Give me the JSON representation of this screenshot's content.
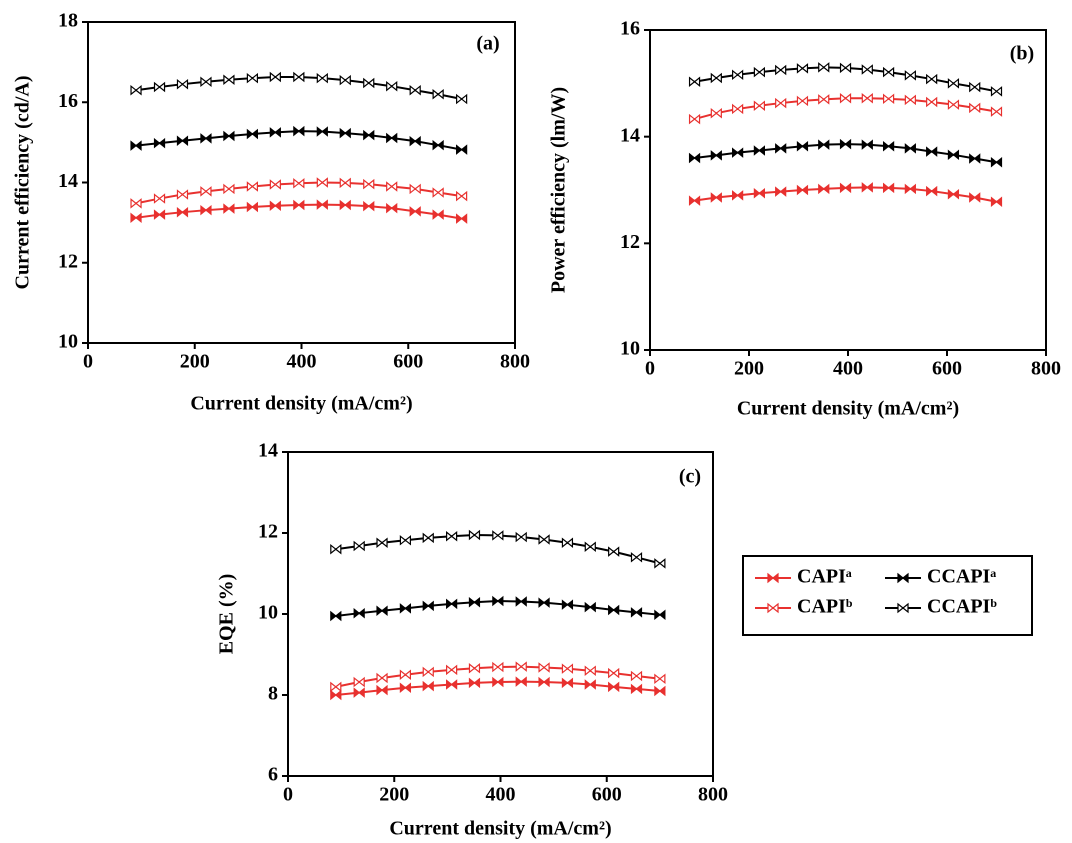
{
  "chart_data": [
    {
      "type": "line",
      "annotation": "(a)",
      "x_label": "Current density (mA/cm²)",
      "y_label": "Current efficiency (cd/A)",
      "x": [
        90,
        134,
        177,
        221,
        264,
        308,
        351,
        395,
        439,
        482,
        526,
        569,
        613,
        656,
        700
      ],
      "xlim": [
        0,
        800
      ],
      "xticks": [
        0,
        200,
        400,
        600,
        800
      ],
      "ylim": [
        10,
        18
      ],
      "yticks": [
        10,
        12,
        14,
        16,
        18
      ],
      "series": [
        {
          "color": "#e8312f",
          "filled": true,
          "values": [
            13.12,
            13.2,
            13.26,
            13.31,
            13.35,
            13.39,
            13.42,
            13.44,
            13.45,
            13.44,
            13.41,
            13.36,
            13.28,
            13.2,
            13.1
          ]
        },
        {
          "color": "#e8312f",
          "filled": false,
          "values": [
            13.48,
            13.6,
            13.7,
            13.78,
            13.84,
            13.9,
            13.95,
            13.98,
            14.0,
            13.99,
            13.96,
            13.9,
            13.84,
            13.75,
            13.66
          ]
        },
        {
          "color": "#000000",
          "filled": true,
          "values": [
            14.92,
            14.98,
            15.04,
            15.1,
            15.16,
            15.21,
            15.25,
            15.28,
            15.27,
            15.23,
            15.18,
            15.11,
            15.03,
            14.93,
            14.82
          ]
        },
        {
          "color": "#000000",
          "filled": false,
          "values": [
            16.3,
            16.38,
            16.45,
            16.51,
            16.56,
            16.6,
            16.63,
            16.63,
            16.6,
            16.55,
            16.48,
            16.4,
            16.3,
            16.2,
            16.08
          ]
        }
      ]
    },
    {
      "type": "line",
      "annotation": "(b)",
      "x_label": "Current density (mA/cm²)",
      "y_label": "Power efficiency (lm/W)",
      "x": [
        90,
        134,
        177,
        221,
        264,
        308,
        351,
        395,
        439,
        482,
        526,
        569,
        613,
        656,
        700
      ],
      "xlim": [
        0,
        800
      ],
      "xticks": [
        0,
        200,
        400,
        600,
        800
      ],
      "ylim": [
        10,
        16
      ],
      "yticks": [
        10,
        12,
        14,
        16
      ],
      "series": [
        {
          "color": "#e8312f",
          "filled": true,
          "values": [
            12.8,
            12.86,
            12.9,
            12.94,
            12.97,
            13.0,
            13.02,
            13.04,
            13.05,
            13.04,
            13.02,
            12.98,
            12.92,
            12.86,
            12.78
          ]
        },
        {
          "color": "#e8312f",
          "filled": false,
          "values": [
            14.33,
            14.44,
            14.52,
            14.58,
            14.63,
            14.67,
            14.7,
            14.72,
            14.72,
            14.71,
            14.69,
            14.65,
            14.6,
            14.54,
            14.47
          ]
        },
        {
          "color": "#000000",
          "filled": true,
          "values": [
            13.6,
            13.65,
            13.7,
            13.74,
            13.78,
            13.82,
            13.85,
            13.86,
            13.85,
            13.82,
            13.78,
            13.72,
            13.66,
            13.59,
            13.52
          ]
        },
        {
          "color": "#000000",
          "filled": false,
          "values": [
            15.03,
            15.1,
            15.16,
            15.21,
            15.25,
            15.28,
            15.3,
            15.29,
            15.26,
            15.21,
            15.15,
            15.08,
            15.0,
            14.93,
            14.85
          ]
        }
      ]
    },
    {
      "type": "line",
      "annotation": "(c)",
      "x_label": "Current density (mA/cm²)",
      "y_label": "EQE (%)",
      "legend": "right",
      "x": [
        90,
        134,
        177,
        221,
        264,
        308,
        351,
        395,
        439,
        482,
        526,
        569,
        613,
        656,
        700
      ],
      "xlim": [
        0,
        800
      ],
      "xticks": [
        0,
        200,
        400,
        600,
        800
      ],
      "ylim": [
        6,
        14
      ],
      "yticks": [
        6,
        8,
        10,
        12,
        14
      ],
      "series": [
        {
          "name": "CAPIᵃ",
          "color": "#e8312f",
          "filled": true,
          "values": [
            8.0,
            8.06,
            8.12,
            8.18,
            8.22,
            8.26,
            8.3,
            8.32,
            8.33,
            8.32,
            8.3,
            8.26,
            8.2,
            8.15,
            8.1
          ]
        },
        {
          "name": "CAPIᵇ",
          "color": "#e8312f",
          "filled": false,
          "values": [
            8.2,
            8.32,
            8.42,
            8.5,
            8.57,
            8.62,
            8.66,
            8.69,
            8.7,
            8.68,
            8.65,
            8.6,
            8.54,
            8.47,
            8.4
          ]
        },
        {
          "name": "CCAPIᵃ",
          "color": "#000000",
          "filled": true,
          "values": [
            9.95,
            10.02,
            10.08,
            10.14,
            10.2,
            10.25,
            10.29,
            10.32,
            10.31,
            10.28,
            10.23,
            10.17,
            10.1,
            10.04,
            9.98
          ]
        },
        {
          "name": "CCAPIᵇ",
          "color": "#000000",
          "filled": false,
          "values": [
            11.6,
            11.68,
            11.76,
            11.82,
            11.88,
            11.92,
            11.95,
            11.94,
            11.9,
            11.84,
            11.76,
            11.66,
            11.54,
            11.4,
            11.25
          ]
        }
      ]
    }
  ]
}
